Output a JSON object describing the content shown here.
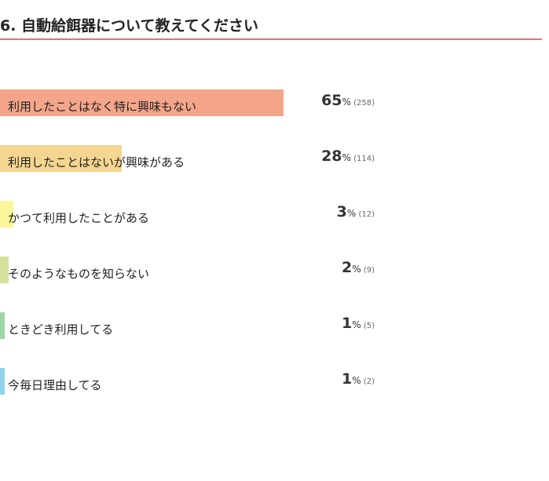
{
  "page": {
    "title": "6. 自動給餌器について教えてください",
    "accent_color": "#e57373"
  },
  "chart_data": {
    "type": "bar",
    "orientation": "horizontal",
    "title": "6. 自動給餌器について教えてください",
    "categories": [
      "利用したことはなく特に興味もない",
      "利用したことはないが興味がある",
      "かつて利用したことがある",
      "そのようなものを知らない",
      "ときどき利用してる",
      "今毎日理由してる"
    ],
    "values": [
      65,
      28,
      3,
      2,
      1,
      1
    ],
    "counts": [
      "(258)",
      "(114)",
      "(12)",
      "(9)",
      "(5)",
      "(2)"
    ],
    "unit": "%",
    "colors": [
      "#f4a58a",
      "#f5d690",
      "#fbf69a",
      "#d6e29a",
      "#9fd6a8",
      "#8fd3e8"
    ],
    "xlim": [
      0,
      100
    ],
    "grid": false,
    "legend": "none"
  }
}
